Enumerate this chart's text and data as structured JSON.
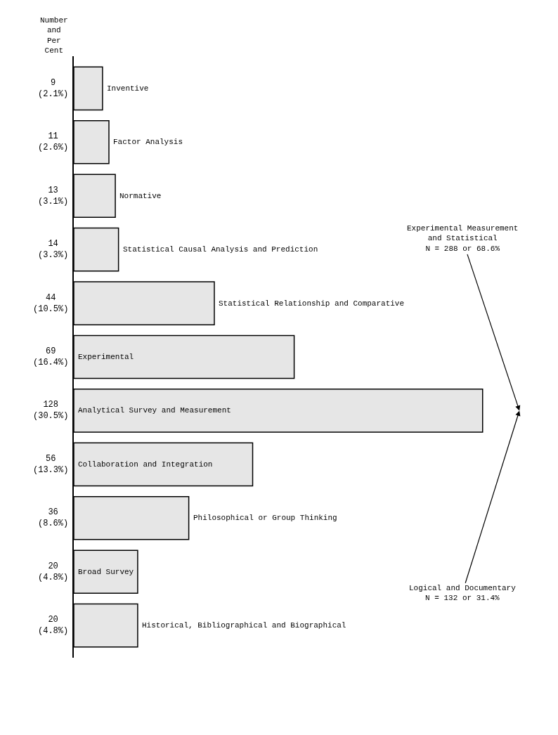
{
  "chart_data": {
    "type": "bar",
    "orientation": "horizontal",
    "ylabel": "Number and Per Cent",
    "categories": [
      "Inventive",
      "Factor Analysis",
      "Normative",
      "Statistical Causal Analysis and Prediction",
      "Statistical Relationship and Comparative",
      "Experimental",
      "Analytical Survey and Measurement",
      "Collaboration and Integration",
      "Philosophical or Group Thinking",
      "Broad Survey",
      "Historical, Bibliographical and Biographical"
    ],
    "values": [
      9,
      11,
      13,
      14,
      44,
      69,
      128,
      56,
      36,
      20,
      20
    ],
    "value_labels": [
      "9 (2.1%)",
      "11 (2.6%)",
      "13 (3.1%)",
      "14 (3.3%)",
      "44 (10.5%)",
      "69 (16.4%)",
      "128 (30.5%)",
      "56 (13.3%)",
      "36 (8.6%)",
      "20 (4.8%)",
      "20 (4.8%)"
    ],
    "color": "#e6e6e6",
    "annotations": [
      "Experimental Measurement and Statistical N = 288 or 68.6%",
      "Logical and Documentary N = 132 or 31.4%"
    ],
    "tick_labels": false
  }
}
